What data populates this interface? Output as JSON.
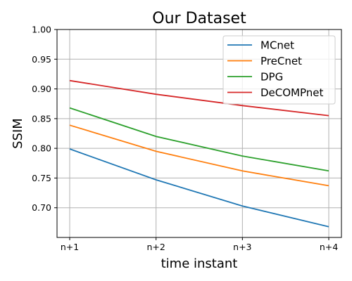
{
  "chart_data": {
    "type": "line",
    "title": "Our Dataset",
    "xlabel": "time instant",
    "ylabel": "SSIM",
    "categories": [
      "n+1",
      "n+2",
      "n+3",
      "n+4"
    ],
    "ylim": [
      0.65,
      1.0
    ],
    "yticks": [
      0.7,
      0.75,
      0.8,
      0.85,
      0.9,
      0.95,
      1.0
    ],
    "ytick_labels": [
      "0.70",
      "0.75",
      "0.80",
      "0.85",
      "0.90",
      "0.95",
      "1.00"
    ],
    "grid": true,
    "legend_position": "top-right",
    "series": [
      {
        "name": "MCnet",
        "color": "#1f77b4",
        "values": [
          0.799,
          0.747,
          0.703,
          0.668
        ]
      },
      {
        "name": "PreCnet",
        "color": "#ff7f0e",
        "values": [
          0.839,
          0.795,
          0.762,
          0.737
        ]
      },
      {
        "name": "DPG",
        "color": "#2ca02c",
        "values": [
          0.868,
          0.82,
          0.787,
          0.762
        ]
      },
      {
        "name": "DeCOMPnet",
        "color": "#d62728",
        "values": [
          0.914,
          0.891,
          0.872,
          0.855
        ]
      }
    ]
  }
}
